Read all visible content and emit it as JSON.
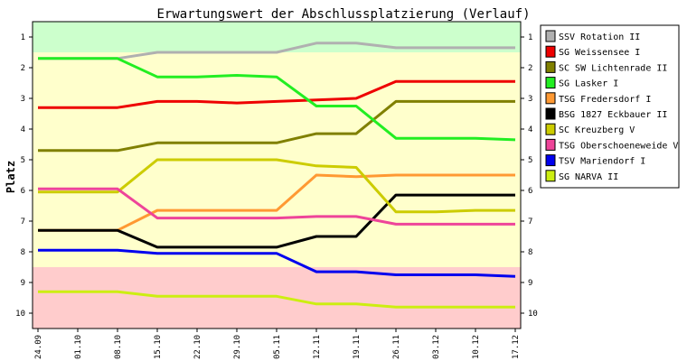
{
  "chart_data": {
    "type": "line",
    "title": "Erwartungswert der Abschlussplatzierung (Verlauf)",
    "ylabel": "Platz",
    "xlabel": "",
    "x": [
      "24.09",
      "01.10",
      "08.10",
      "15.10",
      "22.10",
      "29.10",
      "05.11",
      "12.11",
      "19.11",
      "26.11",
      "03.12",
      "10.12",
      "17.12"
    ],
    "y_ticks": [
      1,
      2,
      3,
      4,
      5,
      6,
      7,
      8,
      9,
      10
    ],
    "ylim": [
      10.5,
      0.5
    ],
    "y_inverted": true,
    "grid": false,
    "legend_position": "right",
    "zones": [
      {
        "from": 0.5,
        "to": 1.5,
        "color": "#ccffcc"
      },
      {
        "from": 1.5,
        "to": 8.5,
        "color": "#ffffcc"
      },
      {
        "from": 8.5,
        "to": 10.5,
        "color": "#ffcccc"
      }
    ],
    "series": [
      {
        "name": "SSV Rotation II",
        "color": "#b0b0b0",
        "values": [
          1.7,
          1.7,
          1.7,
          1.5,
          1.5,
          1.5,
          1.5,
          1.2,
          1.2,
          1.35,
          1.35,
          1.35,
          1.35
        ]
      },
      {
        "name": "SG Weissensee I",
        "color": "#ee0000",
        "values": [
          3.3,
          3.3,
          3.3,
          3.1,
          3.1,
          3.15,
          3.1,
          3.05,
          3.0,
          2.45,
          2.45,
          2.45,
          2.45
        ]
      },
      {
        "name": "SC SW Lichtenrade II",
        "color": "#808000",
        "values": [
          4.7,
          4.7,
          4.7,
          4.45,
          4.45,
          4.45,
          4.45,
          4.15,
          4.15,
          3.1,
          3.1,
          3.1,
          3.1
        ]
      },
      {
        "name": "SG Lasker I",
        "color": "#22ee22",
        "values": [
          1.7,
          1.7,
          1.7,
          2.3,
          2.3,
          2.25,
          2.3,
          3.25,
          3.25,
          4.3,
          4.3,
          4.3,
          4.35
        ]
      },
      {
        "name": "TSG Fredersdorf I",
        "color": "#ff9933",
        "values": [
          7.3,
          7.3,
          7.3,
          6.65,
          6.65,
          6.65,
          6.65,
          5.5,
          5.55,
          5.5,
          5.5,
          5.5,
          5.5
        ]
      },
      {
        "name": "BSG 1827 Eckbauer II",
        "color": "#000000",
        "values": [
          7.3,
          7.3,
          7.3,
          7.85,
          7.85,
          7.85,
          7.85,
          7.5,
          7.5,
          6.15,
          6.15,
          6.15,
          6.15
        ]
      },
      {
        "name": "SC Kreuzberg V",
        "color": "#cccc00",
        "values": [
          6.05,
          6.05,
          6.05,
          5.0,
          5.0,
          5.0,
          5.0,
          5.2,
          5.25,
          6.7,
          6.7,
          6.65,
          6.65
        ]
      },
      {
        "name": "TSG Oberschoeneweide V",
        "color": "#ee4499",
        "values": [
          5.95,
          5.95,
          5.95,
          6.9,
          6.9,
          6.9,
          6.9,
          6.85,
          6.85,
          7.1,
          7.1,
          7.1,
          7.1
        ]
      },
      {
        "name": "TSV Mariendorf I",
        "color": "#0000ee",
        "values": [
          7.95,
          7.95,
          7.95,
          8.05,
          8.05,
          8.05,
          8.05,
          8.65,
          8.65,
          8.75,
          8.75,
          8.75,
          8.8
        ]
      },
      {
        "name": "SG NARVA II",
        "color": "#ccee11",
        "values": [
          9.3,
          9.3,
          9.3,
          9.45,
          9.45,
          9.45,
          9.45,
          9.7,
          9.7,
          9.8,
          9.8,
          9.8,
          9.8
        ]
      }
    ]
  }
}
